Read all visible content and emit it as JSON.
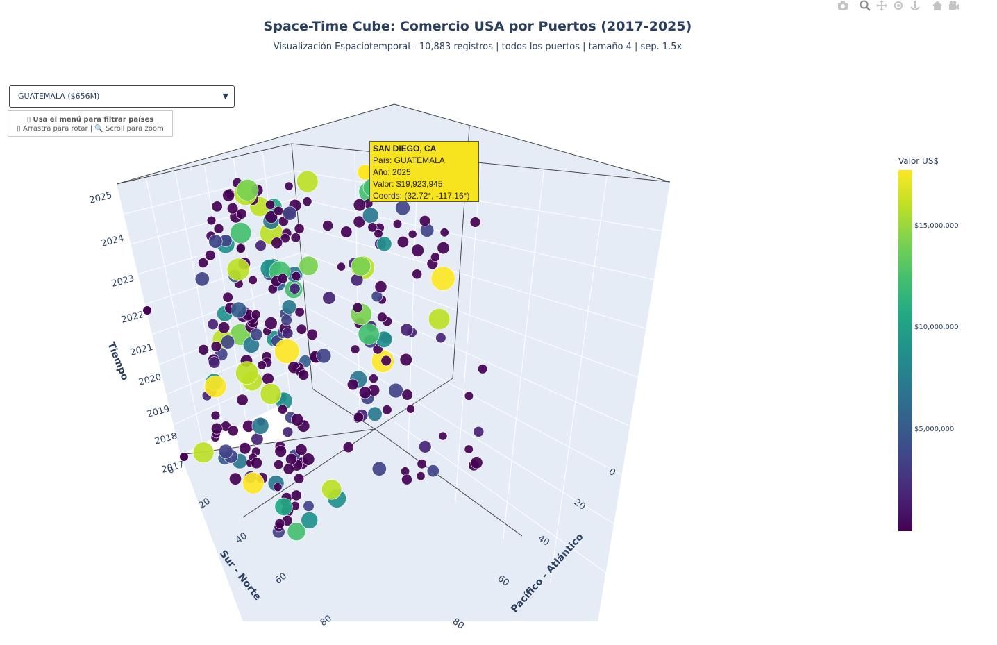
{
  "title": "Space-Time Cube: Comercio USA por Puertos (2017-2025)",
  "subtitle": "Visualización Espaciotemporal - 10,883 registros | todos los puertos | tamaño 4 | sep. 1.5x",
  "toolbar": {
    "icons": [
      "camera-icon",
      "zoom-icon",
      "pan-icon",
      "orbit-rotation-icon",
      "turntable-rotation-icon",
      "home-icon",
      "camera-view-icon"
    ]
  },
  "dropdown": {
    "selected": "GUATEMALA ($656M)"
  },
  "help": {
    "line1": "Usa el menú para filtrar países",
    "line2": "Arrastra para rotar | 🔍 Scroll para zoom"
  },
  "tooltip": {
    "header": "SAN DIEGO, CA",
    "line1": "País: GUATEMALA",
    "line2": "Año: 2025",
    "line3": "Valor: $19,923,945",
    "line4": "Coords: (32.72°, -117.16°)"
  },
  "colorbar": {
    "title": "Valor US$",
    "colorscale": "Viridis",
    "ticks": [
      "$15,000,000",
      "$10,000,000",
      "$5,000,000"
    ]
  },
  "chart_data": {
    "type": "scatter",
    "projection": "3d",
    "axes": {
      "z": {
        "title": "Tiempo",
        "ticks": [
          "2025",
          "2024",
          "2023",
          "2022",
          "2021",
          "2020",
          "2019",
          "2018",
          "2017"
        ]
      },
      "y": {
        "title": "Sur - Norte",
        "ticks": [
          "0",
          "20",
          "40",
          "60",
          "80"
        ]
      },
      "x": {
        "title": "Pacífico - Atlántico",
        "ticks": [
          "0",
          "20",
          "40",
          "60",
          "80"
        ]
      }
    },
    "colors": {
      "low": "#440154",
      "high": "#fde725",
      "pane": "#e5ecf6",
      "axis_title": "#2a3f5f"
    },
    "note_values": "Individual point values are shown only via color/size and are not labeled."
  }
}
